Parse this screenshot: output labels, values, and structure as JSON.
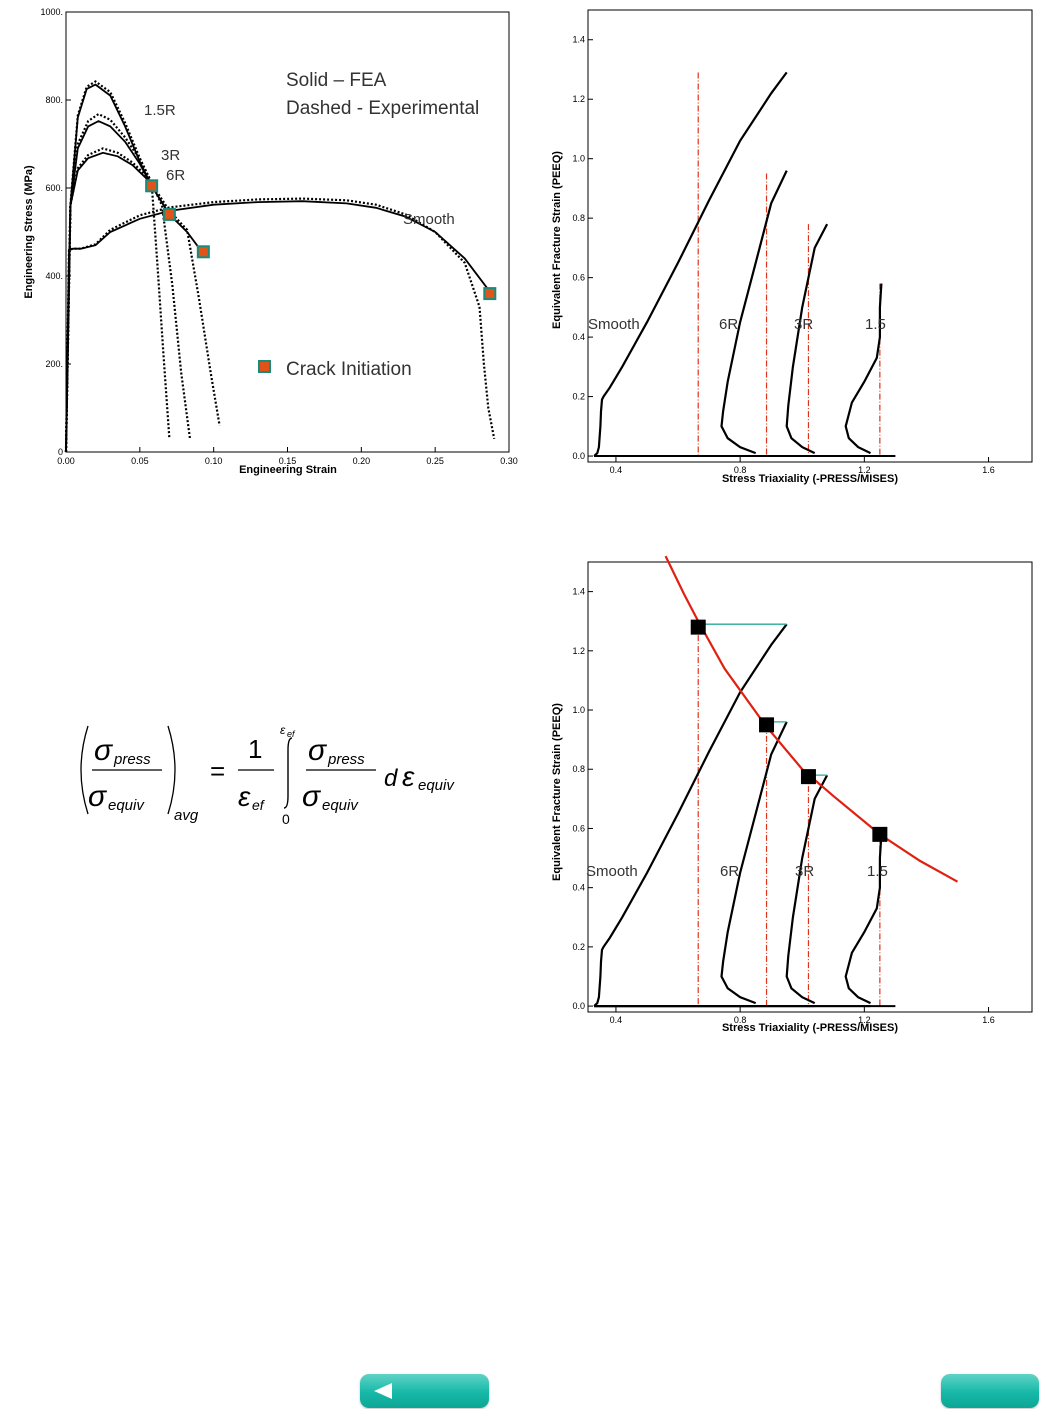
{
  "navigation": {
    "back_label": "",
    "next_label": ""
  },
  "colors": {
    "fea": "#000000",
    "experimental": "#000000",
    "crack_marker_fill": "#e0541a",
    "crack_marker_border": "#1a8a7a",
    "dashdot_lines": "#e0341a",
    "fit_curve": "#e02010",
    "connector": "#2aa89a",
    "nav_button": "#16b8a7"
  },
  "icons": {
    "back": "left-triangle-icon"
  },
  "chart_data": [
    {
      "type": "line",
      "xlabel": "Engineering Strain",
      "ylabel": "Engineering Stress (MPa)",
      "xlim": [
        0,
        0.3
      ],
      "ylim": [
        0,
        1000
      ],
      "xticks": [
        "0.00",
        "0.05",
        "0.10",
        "0.15",
        "0.20",
        "0.25",
        "0.30"
      ],
      "yticks": [
        "0",
        "200.",
        "400.",
        "600.",
        "800.",
        "1000."
      ],
      "annotations": [
        "Solid – FEA",
        "Dashed - Experimental"
      ],
      "legend": [
        {
          "label": "Crack Initiation",
          "marker": "square"
        }
      ],
      "series": [
        {
          "name": "1.5R",
          "style": "solid",
          "x": [
            0,
            0.003,
            0.008,
            0.014,
            0.02,
            0.03,
            0.04,
            0.05,
            0.058
          ],
          "y": [
            0,
            560,
            760,
            825,
            835,
            810,
            740,
            660,
            605
          ]
        },
        {
          "name": "1.5R",
          "style": "dashed",
          "x": [
            0,
            0.003,
            0.008,
            0.014,
            0.02,
            0.03,
            0.04,
            0.05,
            0.058,
            0.062,
            0.066,
            0.07
          ],
          "y": [
            0,
            560,
            765,
            830,
            842,
            818,
            748,
            668,
            612,
            420,
            220,
            30
          ]
        },
        {
          "name": "3R",
          "style": "solid",
          "x": [
            0,
            0.003,
            0.008,
            0.015,
            0.022,
            0.03,
            0.04,
            0.05,
            0.058
          ],
          "y": [
            0,
            560,
            690,
            740,
            752,
            740,
            705,
            655,
            605
          ]
        },
        {
          "name": "3R",
          "style": "dashed",
          "x": [
            0,
            0.003,
            0.008,
            0.015,
            0.022,
            0.03,
            0.04,
            0.05,
            0.058,
            0.065,
            0.072,
            0.078,
            0.084
          ],
          "y": [
            0,
            560,
            700,
            752,
            768,
            755,
            715,
            665,
            612,
            560,
            380,
            180,
            30
          ]
        },
        {
          "name": "6R",
          "style": "solid",
          "x": [
            0,
            0.003,
            0.008,
            0.015,
            0.025,
            0.035,
            0.045,
            0.055,
            0.058,
            0.07
          ],
          "y": [
            0,
            560,
            640,
            668,
            680,
            672,
            652,
            620,
            605,
            540
          ]
        },
        {
          "name": "6R",
          "style": "dashed",
          "x": [
            0,
            0.003,
            0.008,
            0.015,
            0.025,
            0.035,
            0.045,
            0.055,
            0.058,
            0.07,
            0.082,
            0.09,
            0.098,
            0.104
          ],
          "y": [
            0,
            560,
            645,
            675,
            690,
            680,
            658,
            626,
            610,
            548,
            505,
            350,
            180,
            60
          ]
        },
        {
          "name": "Smooth",
          "style": "solid",
          "x": [
            0,
            0.002,
            0.005,
            0.01,
            0.02,
            0.03,
            0.05,
            0.07,
            0.1,
            0.13,
            0.16,
            0.19,
            0.21,
            0.23,
            0.25,
            0.27,
            0.288
          ],
          "y": [
            0,
            460,
            462,
            462,
            470,
            500,
            530,
            548,
            562,
            568,
            570,
            565,
            555,
            535,
            500,
            440,
            360
          ]
        },
        {
          "name": "Smooth",
          "style": "dashed",
          "x": [
            0,
            0.002,
            0.005,
            0.01,
            0.02,
            0.03,
            0.05,
            0.07,
            0.1,
            0.13,
            0.16,
            0.19,
            0.21,
            0.23,
            0.25,
            0.27,
            0.28,
            0.283,
            0.286,
            0.29
          ],
          "y": [
            0,
            460,
            462,
            462,
            472,
            505,
            538,
            556,
            568,
            574,
            576,
            572,
            562,
            540,
            500,
            430,
            330,
            200,
            100,
            30
          ]
        },
        {
          "name": "6R",
          "style": "solid",
          "x": [
            0.058,
            0.07,
            0.082,
            0.092
          ],
          "y": [
            605,
            540,
            500,
            455
          ]
        }
      ],
      "crack_initiation": {
        "x": [
          0.058,
          0.07,
          0.093,
          0.287
        ],
        "y": [
          605,
          540,
          455,
          360
        ]
      },
      "curve_labels": [
        "1.5R",
        "3R",
        "6R",
        "Smooth"
      ]
    },
    {
      "type": "line",
      "xlabel": "Stress Triaxiality (-PRESS/MISES)",
      "ylabel": "Equivalent Fracture Strain (PEEQ)",
      "xlim": [
        0.31,
        1.74
      ],
      "ylim": [
        -0.02,
        1.5
      ],
      "xticks": [
        "0.4",
        "0.8",
        "1.2",
        "1.6"
      ],
      "yticks": [
        "0.0",
        "0.2",
        "0.4",
        "0.6",
        "0.8",
        "1.0",
        "1.2",
        "1.4"
      ],
      "series": [
        {
          "name": "Smooth",
          "x": [
            0.33,
            0.34,
            0.345,
            0.35,
            0.352,
            0.355,
            0.36,
            0.38,
            0.42,
            0.5,
            0.6,
            0.7,
            0.8,
            0.9,
            0.95
          ],
          "y": [
            0.0,
            0.01,
            0.03,
            0.1,
            0.15,
            0.19,
            0.2,
            0.23,
            0.3,
            0.45,
            0.65,
            0.86,
            1.06,
            1.22,
            1.29
          ]
        },
        {
          "name": "6R",
          "x": [
            0.85,
            0.8,
            0.76,
            0.74,
            0.745,
            0.76,
            0.8,
            0.85,
            0.9,
            0.95
          ],
          "y": [
            0.01,
            0.03,
            0.06,
            0.1,
            0.15,
            0.25,
            0.45,
            0.65,
            0.85,
            0.96
          ]
        },
        {
          "name": "3R",
          "x": [
            1.04,
            1.0,
            0.965,
            0.95,
            0.955,
            0.97,
            1.0,
            1.04,
            1.08
          ],
          "y": [
            0.01,
            0.03,
            0.06,
            0.1,
            0.17,
            0.3,
            0.5,
            0.7,
            0.78
          ]
        },
        {
          "name": "1.5",
          "x": [
            1.22,
            1.18,
            1.15,
            1.14,
            1.16,
            1.2,
            1.24,
            1.25,
            1.25,
            1.255
          ],
          "y": [
            0.01,
            0.03,
            0.06,
            0.1,
            0.18,
            0.25,
            0.33,
            0.4,
            0.5,
            0.58
          ]
        }
      ],
      "baselines": [
        {
          "from": 0.33,
          "to": 0.85
        },
        {
          "from": 0.33,
          "to": 1.04
        },
        {
          "from": 0.33,
          "to": 1.22
        },
        {
          "from": 0.33,
          "to": 1.3
        }
      ],
      "vertical_markers": [
        {
          "x": 0.665,
          "ytop": 1.29
        },
        {
          "x": 0.885,
          "ytop": 0.95
        },
        {
          "x": 1.02,
          "ytop": 0.78
        },
        {
          "x": 1.25,
          "ytop": 0.58
        }
      ],
      "curve_labels": [
        "Smooth",
        "6R",
        "3R",
        "1.5"
      ]
    },
    {
      "type": "line",
      "xlabel": "Stress Triaxiality (-PRESS/MISES)",
      "ylabel": "Equivalent Fracture Strain (PEEQ)",
      "xlim": [
        0.31,
        1.74
      ],
      "ylim": [
        -0.02,
        1.5
      ],
      "xticks": [
        "0.4",
        "0.8",
        "1.2",
        "1.6"
      ],
      "yticks": [
        "0.0",
        "0.2",
        "0.4",
        "0.6",
        "0.8",
        "1.0",
        "1.2",
        "1.4"
      ],
      "fit_curve": {
        "x": [
          0.56,
          0.62,
          0.67,
          0.75,
          0.88,
          1.0,
          1.1,
          1.25,
          1.38,
          1.5
        ],
        "y": [
          1.52,
          1.39,
          1.29,
          1.14,
          0.95,
          0.8,
          0.71,
          0.58,
          0.49,
          0.42
        ]
      },
      "fracture_points": {
        "x": [
          0.665,
          0.885,
          1.02,
          1.25
        ],
        "y": [
          1.28,
          0.95,
          0.775,
          0.58
        ]
      },
      "connectors": [
        {
          "x0": 0.665,
          "x1": 0.95,
          "y": 1.29
        },
        {
          "x0": 0.885,
          "x1": 0.95,
          "y": 0.96
        },
        {
          "x0": 1.02,
          "x1": 1.08,
          "y": 0.78
        }
      ],
      "curve_labels": [
        "Smooth",
        "6R",
        "3R",
        "1.5"
      ]
    }
  ]
}
